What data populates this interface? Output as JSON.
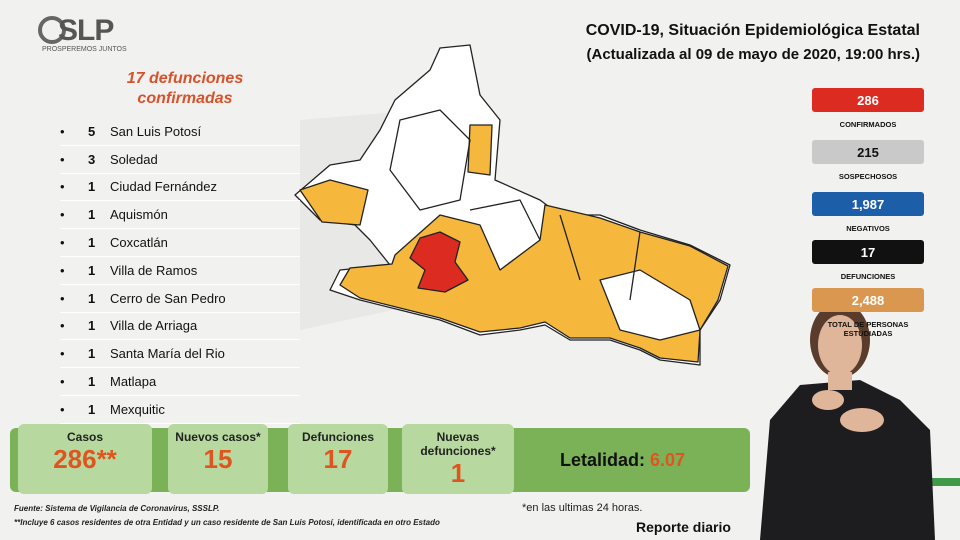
{
  "logo": {
    "text": "SLP",
    "tagline": "PROSPEREMOS JUNTOS"
  },
  "header": {
    "title": "COVID-19, Situación Epidemiológica Estatal",
    "subtitle": "(Actualizada al 09 de mayo de 2020, 19:00 hrs.)"
  },
  "deaths": {
    "heading": [
      "17 defunciones",
      "confirmadas"
    ],
    "items": [
      {
        "count": "5",
        "place": "San Luis Potosí"
      },
      {
        "count": "3",
        "place": "Soledad"
      },
      {
        "count": "1",
        "place": "Ciudad Fernández"
      },
      {
        "count": "1",
        "place": "Aquismón"
      },
      {
        "count": "1",
        "place": "Coxcatlán"
      },
      {
        "count": "1",
        "place": "Villa de Ramos"
      },
      {
        "count": "1",
        "place": "Cerro de San Pedro"
      },
      {
        "count": "1",
        "place": "Villa de Arriaga"
      },
      {
        "count": "1",
        "place": "Santa María del Rio"
      },
      {
        "count": "1",
        "place": "Matlapa"
      },
      {
        "count": "1",
        "place": "Mexquitic"
      }
    ]
  },
  "stats": [
    {
      "value": "286",
      "label": "CONFIRMADOS"
    },
    {
      "value": "215",
      "label": "SOSPECHOSOS"
    },
    {
      "value": "1,987",
      "label": "NEGATIVOS"
    },
    {
      "value": "17",
      "label": "DEFUNCIONES"
    },
    {
      "value": "2,488",
      "label": "TOTAL DE PERSONAS ESTUDIADAS"
    }
  ],
  "summary": [
    {
      "label": "Casos",
      "value": "286**"
    },
    {
      "label": "Nuevos casos*",
      "value": "15"
    },
    {
      "label": "Defunciones",
      "value": "17"
    },
    {
      "label": "Nuevas defunciones*",
      "value": "1"
    }
  ],
  "lethality": {
    "label": "Letalidad:",
    "value": "6.07"
  },
  "footer": {
    "source": "Fuente: Sistema de Vigilancia de Coronavirus, SSSLP.",
    "note": "**Incluye 6 casos residentes de otra Entidad y un caso residente de San Luis Potosí, identificada en otro Estado",
    "asterisk": "*en las ultimas 24 horas.",
    "report": "Reporte diario"
  }
}
